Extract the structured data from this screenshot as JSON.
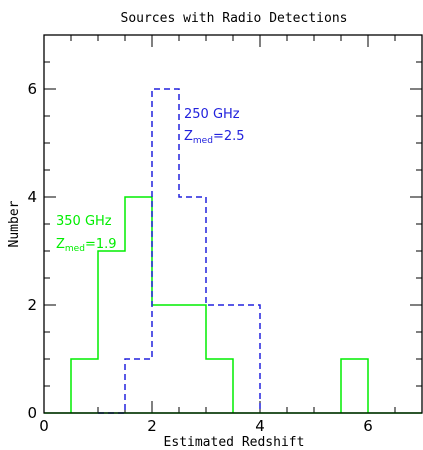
{
  "chart_data": {
    "type": "histogram",
    "title": "Sources with Radio Detections",
    "xlabel": "Estimated Redshift",
    "ylabel": "Number",
    "xlim": [
      0,
      7
    ],
    "ylim": [
      0,
      7
    ],
    "xticks": [
      0,
      2,
      4,
      6
    ],
    "yticks": [
      0,
      2,
      4,
      6
    ],
    "grid": false,
    "series": [
      {
        "name": "350 GHz",
        "color": "#00ee00",
        "style": "solid",
        "median_prefix": "Z",
        "median_sub": "med",
        "median_value": "=1.9",
        "bins": [
          {
            "x0": 0.5,
            "x1": 1.0,
            "count": 1
          },
          {
            "x0": 1.0,
            "x1": 1.5,
            "count": 3
          },
          {
            "x0": 1.5,
            "x1": 2.0,
            "count": 4
          },
          {
            "x0": 2.0,
            "x1": 2.5,
            "count": 2
          },
          {
            "x0": 2.5,
            "x1": 3.0,
            "count": 2
          },
          {
            "x0": 3.0,
            "x1": 3.5,
            "count": 1
          },
          {
            "x0": 5.5,
            "x1": 6.0,
            "count": 1
          }
        ]
      },
      {
        "name": "250 GHz",
        "color": "#2222dd",
        "style": "dashed",
        "median_prefix": "Z",
        "median_sub": "med",
        "median_value": "=2.5",
        "bins": [
          {
            "x0": 1.0,
            "x1": 1.5,
            "count": 0
          },
          {
            "x0": 1.5,
            "x1": 2.0,
            "count": 1
          },
          {
            "x0": 2.0,
            "x1": 2.5,
            "count": 6
          },
          {
            "x0": 2.5,
            "x1": 3.0,
            "count": 4
          },
          {
            "x0": 3.0,
            "x1": 3.5,
            "count": 2
          },
          {
            "x0": 3.5,
            "x1": 4.0,
            "count": 2
          }
        ]
      }
    ]
  }
}
